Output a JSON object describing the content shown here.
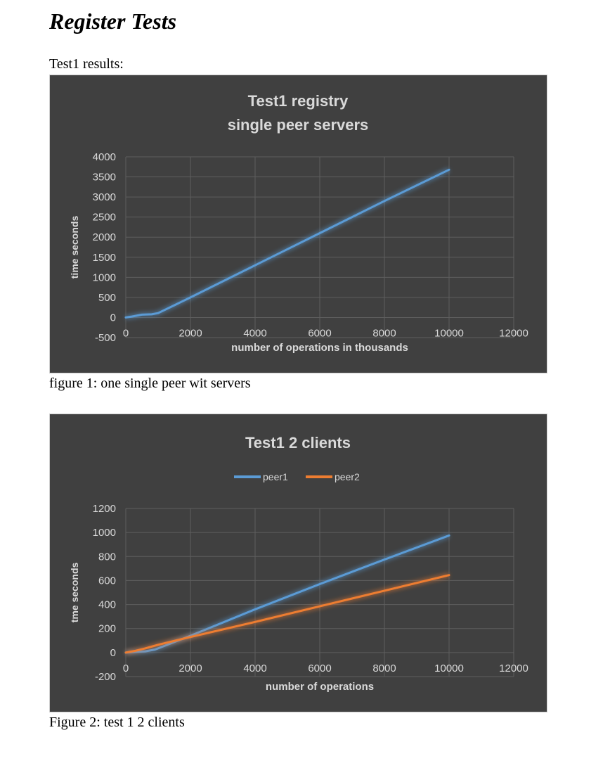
{
  "document": {
    "heading": "Register Tests",
    "intro": "Test1 results:",
    "caption1": "figure 1: one single peer wit servers",
    "caption2": "Figure 2: test 1 2 clients"
  },
  "colors": {
    "background": "#404040",
    "grid": "#5e5e5e",
    "text": "#d9d9d9",
    "peer1": "#5b9bd5",
    "peer2": "#ed7d31"
  },
  "chart_data": [
    {
      "type": "line",
      "title_lines": [
        "Test1 registry",
        "single peer  servers"
      ],
      "xlabel": "number of operations in thousands",
      "ylabel": "time seconds",
      "xlim": [
        0,
        12000
      ],
      "ylim": [
        -500,
        4000
      ],
      "xticks": [
        0,
        2000,
        4000,
        6000,
        8000,
        10000,
        12000
      ],
      "yticks": [
        -500,
        0,
        500,
        1000,
        1500,
        2000,
        2500,
        3000,
        3500,
        4000
      ],
      "grid": true,
      "legend": null,
      "series": [
        {
          "color": "#5b9bd5",
          "x": [
            0,
            200,
            500,
            800,
            1000,
            2000,
            4000,
            6000,
            8000,
            10000
          ],
          "y": [
            0,
            25,
            70,
            80,
            110,
            500,
            1300,
            2100,
            2900,
            3680
          ]
        }
      ]
    },
    {
      "type": "line",
      "title_lines": [
        "Test1 2 clients"
      ],
      "xlabel": "number  of operations",
      "ylabel": "tme seconds",
      "xlim": [
        0,
        12000
      ],
      "ylim": [
        -200,
        1200
      ],
      "xticks": [
        0,
        2000,
        4000,
        6000,
        8000,
        10000,
        12000
      ],
      "yticks": [
        -200,
        0,
        200,
        400,
        600,
        800,
        1000,
        1200
      ],
      "grid": true,
      "legend": "top-center",
      "series": [
        {
          "name": "peer1",
          "color": "#5b9bd5",
          "x": [
            0,
            300,
            600,
            900,
            2000,
            4000,
            6000,
            8000,
            10000
          ],
          "y": [
            0,
            5,
            10,
            25,
            140,
            360,
            570,
            775,
            975
          ]
        },
        {
          "name": "peer2",
          "color": "#ed7d31",
          "x": [
            0,
            300,
            600,
            1000,
            2000,
            4000,
            6000,
            8000,
            10000
          ],
          "y": [
            0,
            15,
            35,
            65,
            130,
            255,
            385,
            515,
            645
          ]
        }
      ]
    }
  ]
}
